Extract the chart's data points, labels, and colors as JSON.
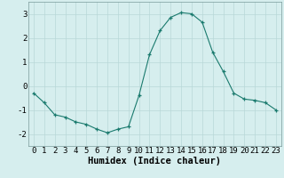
{
  "x": [
    0,
    1,
    2,
    3,
    4,
    5,
    6,
    7,
    8,
    9,
    10,
    11,
    12,
    13,
    14,
    15,
    16,
    17,
    18,
    19,
    20,
    21,
    22,
    23
  ],
  "y": [
    -0.3,
    -0.7,
    -1.2,
    -1.3,
    -1.5,
    -1.6,
    -1.8,
    -1.95,
    -1.8,
    -1.7,
    -0.4,
    1.3,
    2.3,
    2.85,
    3.05,
    3.0,
    2.65,
    1.4,
    0.6,
    -0.3,
    -0.55,
    -0.6,
    -0.7,
    -1.0
  ],
  "xlabel": "Humidex (Indice chaleur)",
  "ylim": [
    -2.5,
    3.5
  ],
  "xlim": [
    -0.5,
    23.5
  ],
  "yticks": [
    -2,
    -1,
    0,
    1,
    2,
    3
  ],
  "xticks": [
    0,
    1,
    2,
    3,
    4,
    5,
    6,
    7,
    8,
    9,
    10,
    11,
    12,
    13,
    14,
    15,
    16,
    17,
    18,
    19,
    20,
    21,
    22,
    23
  ],
  "line_color": "#1a7a6e",
  "marker_color": "#1a7a6e",
  "bg_color": "#d6eeee",
  "grid_color": "#b8d8d8",
  "spine_color": "#7a9a9a",
  "xlabel_fontsize": 7.5,
  "tick_fontsize": 6.5
}
